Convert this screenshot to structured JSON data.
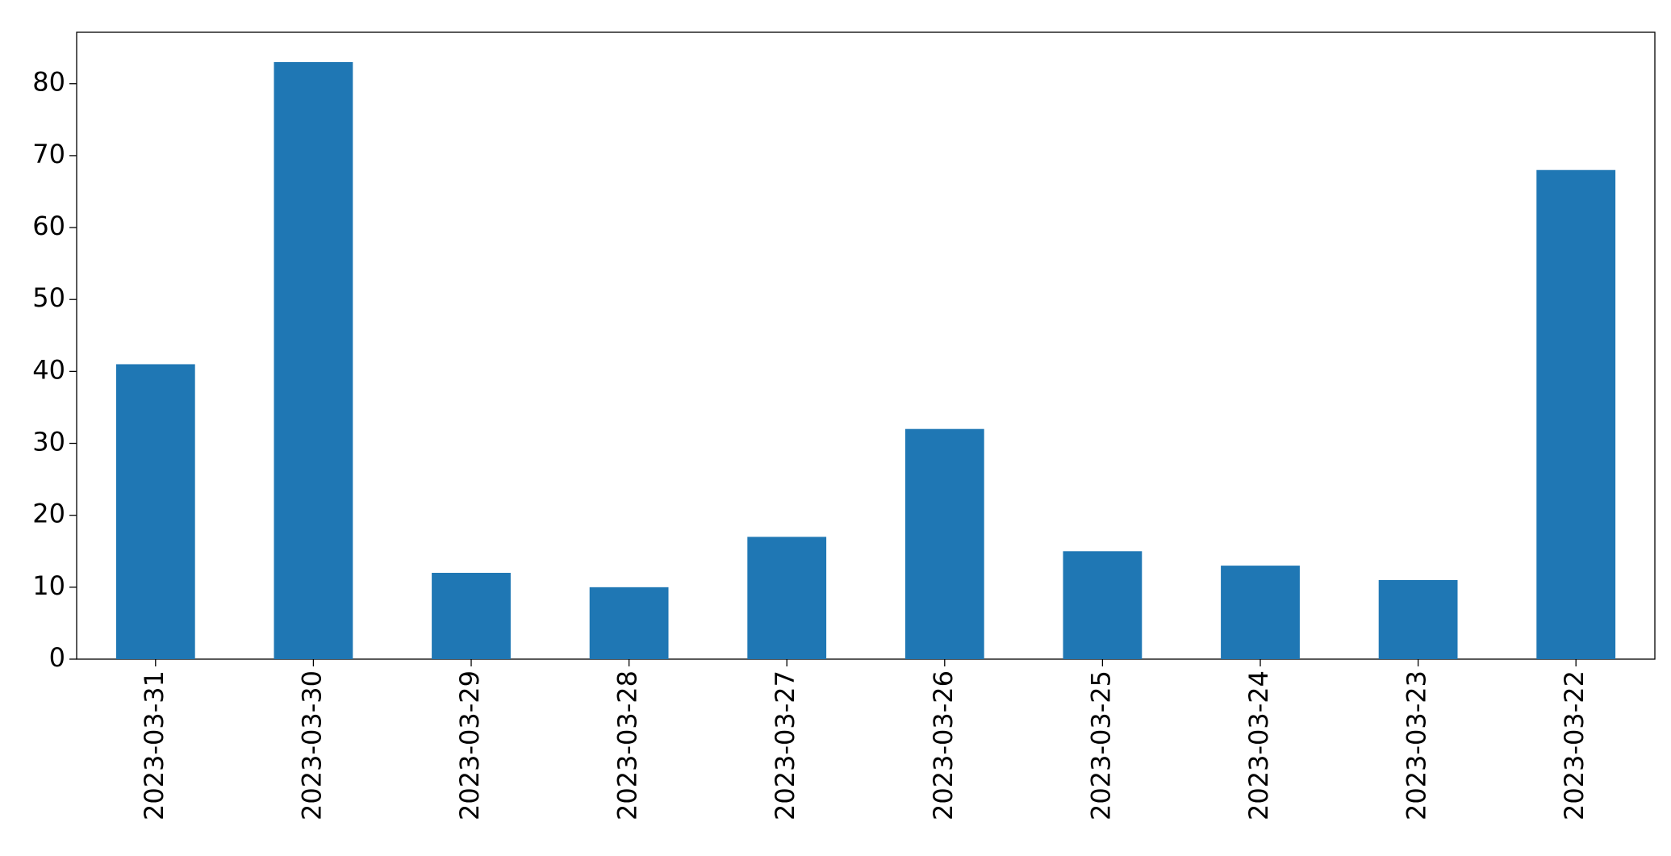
{
  "chart_data": {
    "type": "bar",
    "categories": [
      "2023-03-31",
      "2023-03-30",
      "2023-03-29",
      "2023-03-28",
      "2023-03-27",
      "2023-03-26",
      "2023-03-25",
      "2023-03-24",
      "2023-03-23",
      "2023-03-22"
    ],
    "values": [
      41,
      83,
      12,
      10,
      17,
      32,
      15,
      13,
      11,
      68
    ],
    "color": "#1f77b4",
    "ylim": [
      0,
      87.15
    ],
    "yticks": [
      0,
      10,
      20,
      30,
      40,
      50,
      60,
      70,
      80
    ],
    "grid": false
  }
}
